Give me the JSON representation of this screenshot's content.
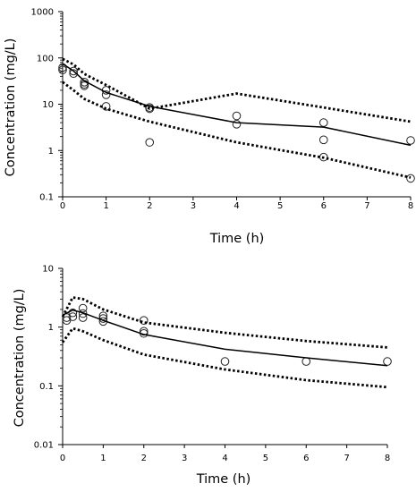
{
  "chart_data": [
    {
      "type": "scatter",
      "xlabel": "Time (h)",
      "ylabel": "Concentration (mg/L)",
      "yscale": "log",
      "xlim": [
        0,
        8
      ],
      "ylim": [
        0.1,
        1000
      ],
      "x_ticks": [
        "0",
        "1",
        "2",
        "3",
        "4",
        "5",
        "6",
        "7",
        "8"
      ],
      "y_ticks": [
        "0.1",
        "1",
        "10",
        "100",
        "1000"
      ],
      "grid": false,
      "legend": "none",
      "series": [
        {
          "style": "markers",
          "points": [
            [
              0,
              62
            ],
            [
              0,
              55
            ],
            [
              0.25,
              52
            ],
            [
              0.25,
              46
            ],
            [
              0.5,
              30
            ],
            [
              0.5,
              27
            ],
            [
              0.5,
              25
            ],
            [
              1,
              20
            ],
            [
              1,
              16
            ],
            [
              1,
              9
            ],
            [
              2,
              8.5
            ],
            [
              2,
              8.0
            ],
            [
              2,
              1.5
            ],
            [
              4,
              5.6
            ],
            [
              4,
              3.7
            ],
            [
              6,
              4.0
            ],
            [
              6,
              1.7
            ],
            [
              6,
              0.72
            ],
            [
              8,
              1.65
            ],
            [
              8,
              0.25
            ]
          ]
        },
        {
          "style": "solid",
          "points": [
            [
              0,
              75
            ],
            [
              0.25,
              52
            ],
            [
              0.5,
              32
            ],
            [
              1,
              18
            ],
            [
              2,
              9
            ],
            [
              4,
              4.0
            ],
            [
              6,
              3.2
            ],
            [
              8,
              1.3
            ]
          ]
        },
        {
          "style": "dotted",
          "points": [
            [
              0,
              95
            ],
            [
              0.25,
              72
            ],
            [
              0.5,
              45
            ],
            [
              1,
              26
            ],
            [
              2,
              8
            ],
            [
              4,
              17
            ],
            [
              6,
              8.5
            ],
            [
              8,
              4.2
            ]
          ]
        },
        {
          "style": "dotted",
          "points": [
            [
              0,
              30
            ],
            [
              0.25,
              20
            ],
            [
              0.5,
              13
            ],
            [
              1,
              8
            ],
            [
              2,
              4.2
            ],
            [
              4,
              1.5
            ],
            [
              6,
              0.7
            ],
            [
              8,
              0.26
            ]
          ]
        }
      ]
    },
    {
      "type": "scatter",
      "xlabel": "Time (h)",
      "ylabel": "Concentration (mg/L)",
      "yscale": "log",
      "xlim": [
        0,
        8
      ],
      "ylim": [
        0.01,
        10
      ],
      "x_ticks": [
        "0",
        "1",
        "2",
        "3",
        "4",
        "5",
        "6",
        "7",
        "8"
      ],
      "y_ticks": [
        "0.01",
        "0.1",
        "1",
        "10"
      ],
      "grid": false,
      "legend": "none",
      "series": [
        {
          "style": "markers",
          "points": [
            [
              0.1,
              1.3
            ],
            [
              0.1,
              1.45
            ],
            [
              0.25,
              1.75
            ],
            [
              0.25,
              1.5
            ],
            [
              0.5,
              2.1
            ],
            [
              0.5,
              1.7
            ],
            [
              0.5,
              1.45
            ],
            [
              1,
              1.55
            ],
            [
              1,
              1.4
            ],
            [
              1,
              1.25
            ],
            [
              2,
              1.3
            ],
            [
              2,
              0.85
            ],
            [
              2,
              0.78
            ],
            [
              4,
              0.26
            ],
            [
              6,
              0.26
            ],
            [
              8,
              0.26
            ]
          ]
        },
        {
          "style": "solid",
          "points": [
            [
              0,
              1.6
            ],
            [
              0.25,
              1.95
            ],
            [
              0.5,
              1.75
            ],
            [
              1,
              1.3
            ],
            [
              2,
              0.75
            ],
            [
              4,
              0.42
            ],
            [
              6,
              0.3
            ],
            [
              8,
              0.22
            ]
          ]
        },
        {
          "style": "dotted",
          "points": [
            [
              0,
              1.5
            ],
            [
              0.25,
              3.2
            ],
            [
              0.5,
              3.0
            ],
            [
              1,
              2.0
            ],
            [
              2,
              1.2
            ],
            [
              4,
              0.8
            ],
            [
              6,
              0.58
            ],
            [
              8,
              0.45
            ]
          ]
        },
        {
          "style": "dotted",
          "points": [
            [
              0,
              0.55
            ],
            [
              0.25,
              0.95
            ],
            [
              0.5,
              0.85
            ],
            [
              1,
              0.6
            ],
            [
              2,
              0.34
            ],
            [
              4,
              0.19
            ],
            [
              6,
              0.125
            ],
            [
              8,
              0.095
            ]
          ]
        }
      ]
    }
  ]
}
